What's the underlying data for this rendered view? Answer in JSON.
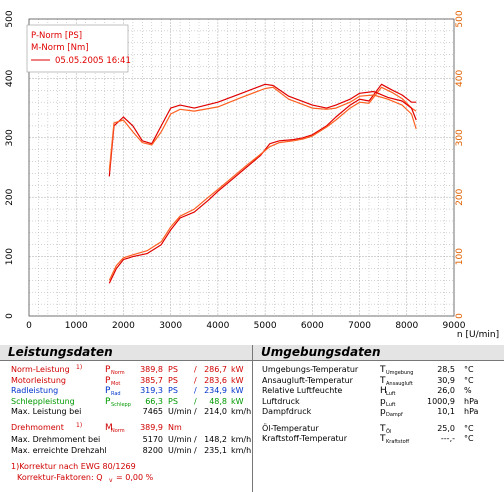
{
  "chart_data": {
    "type": "line",
    "legend": {
      "p_label": "P-Norm [PS]",
      "m_label": "M-Norm [Nm]",
      "run_label": "05.05.2005 16:41",
      "placement": "top-left"
    },
    "xlabel": "n [U/min]",
    "xlim": [
      0,
      9000
    ],
    "ylim": [
      0,
      500
    ],
    "x_ticks": [
      "0",
      "1000",
      "2000",
      "3000",
      "4000",
      "5000",
      "6000",
      "7000",
      "8000",
      "9000"
    ],
    "y_ticks": [
      "0",
      "100",
      "200",
      "300",
      "400",
      "500"
    ],
    "grid": true,
    "series": [
      {
        "id": "power_run1",
        "color": "#e00000",
        "x": [
          1700,
          1850,
          2000,
          2200,
          2500,
          2800,
          3000,
          3200,
          3500,
          3800,
          4000,
          4300,
          4600,
          4900,
          5100,
          5300,
          5600,
          5800,
          6000,
          6300,
          6500,
          6800,
          7000,
          7200,
          7465,
          7700,
          7900,
          8100,
          8200
        ],
        "y": [
          55,
          80,
          95,
          100,
          105,
          120,
          145,
          165,
          175,
          195,
          210,
          230,
          250,
          270,
          290,
          295,
          297,
          300,
          305,
          320,
          335,
          355,
          365,
          362,
          390,
          380,
          372,
          360,
          360
        ]
      },
      {
        "id": "power_run2",
        "color": "#ff6020",
        "x": [
          1700,
          1850,
          2000,
          2200,
          2500,
          2800,
          3000,
          3200,
          3500,
          3800,
          4000,
          4300,
          4600,
          4900,
          5100,
          5300,
          5600,
          5800,
          6000,
          6300,
          6500,
          6800,
          7000,
          7200,
          7465,
          7700,
          7900,
          8100,
          8200
        ],
        "y": [
          60,
          85,
          98,
          103,
          110,
          125,
          150,
          168,
          180,
          200,
          213,
          233,
          253,
          272,
          285,
          292,
          295,
          298,
          303,
          318,
          330,
          350,
          360,
          358,
          385,
          376,
          366,
          350,
          345
        ]
      },
      {
        "id": "torque_run1",
        "color": "#e00000",
        "x": [
          1700,
          1800,
          2000,
          2200,
          2400,
          2600,
          2800,
          3000,
          3200,
          3500,
          4000,
          4500,
          5000,
          5170,
          5500,
          6000,
          6300,
          6500,
          6800,
          7000,
          7300,
          7600,
          7900,
          8100,
          8200
        ],
        "y": [
          235,
          320,
          335,
          320,
          295,
          290,
          320,
          350,
          355,
          350,
          360,
          375,
          390,
          388,
          370,
          355,
          350,
          355,
          365,
          375,
          378,
          368,
          362,
          350,
          330
        ]
      },
      {
        "id": "torque_run2",
        "color": "#ff6020",
        "x": [
          1700,
          1800,
          2000,
          2200,
          2400,
          2600,
          2800,
          3000,
          3200,
          3500,
          4000,
          4500,
          5000,
          5170,
          5500,
          6000,
          6300,
          6500,
          6800,
          7000,
          7300,
          7600,
          7900,
          8100,
          8200
        ],
        "y": [
          245,
          325,
          330,
          310,
          292,
          288,
          310,
          340,
          348,
          345,
          352,
          368,
          383,
          385,
          365,
          350,
          348,
          350,
          360,
          370,
          372,
          365,
          355,
          340,
          315
        ]
      }
    ]
  },
  "panel": {
    "left_title": "Leistungsdaten",
    "right_title": "Umgebungsdaten",
    "left_rows": [
      {
        "label": "Norm-Leistung",
        "sup": "1)",
        "sym": "P",
        "sub": "Norm",
        "v1": "389,8",
        "u1": "PS",
        "sep": "/",
        "v2": "286,7",
        "u2": "kW",
        "color": "#d00000"
      },
      {
        "label": "Motorleistung",
        "sup": "",
        "sym": "P",
        "sub": "Mot",
        "v1": "385,7",
        "u1": "PS",
        "sep": "/",
        "v2": "283,6",
        "u2": "kW",
        "color": "#d00000"
      },
      {
        "label": "Radleistung",
        "sup": "",
        "sym": "P",
        "sub": "Rad",
        "v1": "319,3",
        "u1": "PS",
        "sep": "/",
        "v2": "234,9",
        "u2": "kW",
        "color": "#0033cc"
      },
      {
        "label": "Schleppleistung",
        "sup": "",
        "sym": "P",
        "sub": "Schlepp",
        "v1": "66,3",
        "u1": "PS",
        "sep": "/",
        "v2": "48,8",
        "u2": "kW",
        "color": "#009900"
      },
      {
        "label": "Max. Leistung bei",
        "sup": "",
        "sym": "",
        "sub": "",
        "v1": "7465",
        "u1": "U/min",
        "sep": "/",
        "v2": "214,0",
        "u2": "km/h",
        "color": "#000000"
      }
    ],
    "torque_rows": [
      {
        "label": "Drehmoment",
        "sup": "1)",
        "sym": "M",
        "sub": "Norm",
        "v1": "389,9",
        "u1": "Nm",
        "sep": "",
        "v2": "",
        "u2": "",
        "color": "#d00000"
      },
      {
        "label": "Max. Drehmoment bei",
        "sup": "",
        "sym": "",
        "sub": "",
        "v1": "5170",
        "u1": "U/min",
        "sep": "/",
        "v2": "148,2",
        "u2": "km/h",
        "color": "#000000"
      },
      {
        "label": "Max. erreichte Drehzahl",
        "sup": "",
        "sym": "",
        "sub": "",
        "v1": "8200",
        "u1": "U/min",
        "sep": "/",
        "v2": "235,1",
        "u2": "km/h",
        "color": "#000000"
      }
    ],
    "footnote": "1)Korrektur nach EWG 80/1269",
    "correction_label": "Korrektur-Faktoren: Q",
    "correction_sub": "v",
    "correction_value": "=   0,00 %",
    "right_rows": [
      {
        "label": "Umgebungs-Temperatur",
        "sym": "T",
        "sub": "Umgebung",
        "val": "28,5",
        "unit": "°C"
      },
      {
        "label": "Ansaugluft-Temperatur",
        "sym": "T",
        "sub": "Ansaugluft",
        "val": "30,9",
        "unit": "°C"
      },
      {
        "label": "Relative Luftfeuchte",
        "sym": "H",
        "sub": "Luft",
        "val": "26,0",
        "unit": "%"
      },
      {
        "label": "Luftdruck",
        "sym": "p",
        "sub": "Luft",
        "val": "1000,9",
        "unit": "hPa"
      },
      {
        "label": "Dampfdruck",
        "sym": "p",
        "sub": "Dampf",
        "val": "10,1",
        "unit": "hPa"
      },
      {
        "label": "Öl-Temperatur",
        "sym": "T",
        "sub": "Öl",
        "val": "25,0",
        "unit": "°C"
      },
      {
        "label": "Kraftstoff-Temperatur",
        "sym": "T",
        "sub": "Kraftstoff",
        "val": "---,-",
        "unit": "°C"
      }
    ]
  }
}
